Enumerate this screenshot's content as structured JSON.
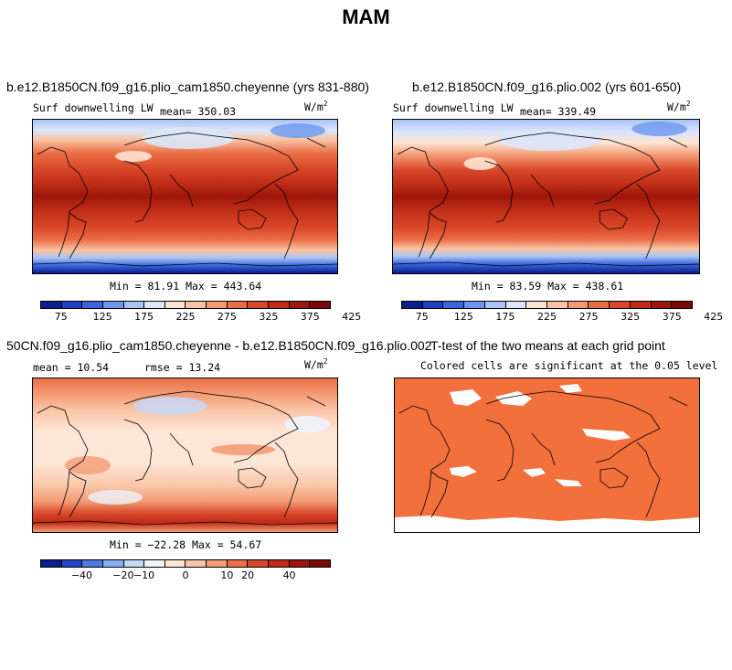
{
  "title": "MAM",
  "panels": [
    {
      "title": "b.e12.B1850CN.f09_g16.plio_cam1850.cheyenne (yrs 831-880)",
      "variable": "Surf downwelling LW",
      "mean_label": "mean= 350.03",
      "units": "W/m",
      "units_exp": "2",
      "minmax": "Min =  81.91 Max = 443.64",
      "colorbar_ticks": [
        "75",
        "125",
        "175",
        "225",
        "275",
        "325",
        "375",
        "425"
      ]
    },
    {
      "title": "b.e12.B1850CN.f09_g16.plio.002 (yrs 601-650)",
      "variable": "Surf downwelling LW",
      "mean_label": "mean= 339.49",
      "units": "W/m",
      "units_exp": "2",
      "minmax": "Min =  83.59 Max = 438.61",
      "colorbar_ticks": [
        "75",
        "125",
        "175",
        "225",
        "275",
        "325",
        "375",
        "425"
      ]
    },
    {
      "title": "50CN.f09_g16.plio_cam1850.cheyenne - b.e12.B1850CN.f09_g16.plio.002",
      "mean_label": "mean =  10.54",
      "rmse_label": "rmse =  13.24",
      "units": "W/m",
      "units_exp": "2",
      "minmax": "Min = −22.28 Max =  54.67",
      "colorbar_ticks": [
        "−40",
        "−20",
        "−10",
        "0",
        "10",
        "20",
        "40"
      ]
    },
    {
      "title": "T-test of the two means at each grid point",
      "subtitle": "Colored cells are significant at the 0.05 level"
    }
  ],
  "colors": {
    "abs_scale": [
      "#0a1e8c",
      "#1f3fc4",
      "#3a66e0",
      "#6c96ef",
      "#a8c4f5",
      "#dbe6fa",
      "#fde4d2",
      "#f9c3a3",
      "#f39a73",
      "#ea6e45",
      "#d8472a",
      "#be2b16",
      "#9c160a",
      "#7a0a04"
    ],
    "diff_scale": [
      "#0a1e8c",
      "#2447c8",
      "#4f7ae4",
      "#8aaef2",
      "#c5d8f8",
      "#eef3fc",
      "#fde6d6",
      "#f9c6a7",
      "#f39c76",
      "#eb7049",
      "#d8472a",
      "#be2b16",
      "#9c160a",
      "#7a0a04"
    ],
    "significance": "#f2703c"
  }
}
